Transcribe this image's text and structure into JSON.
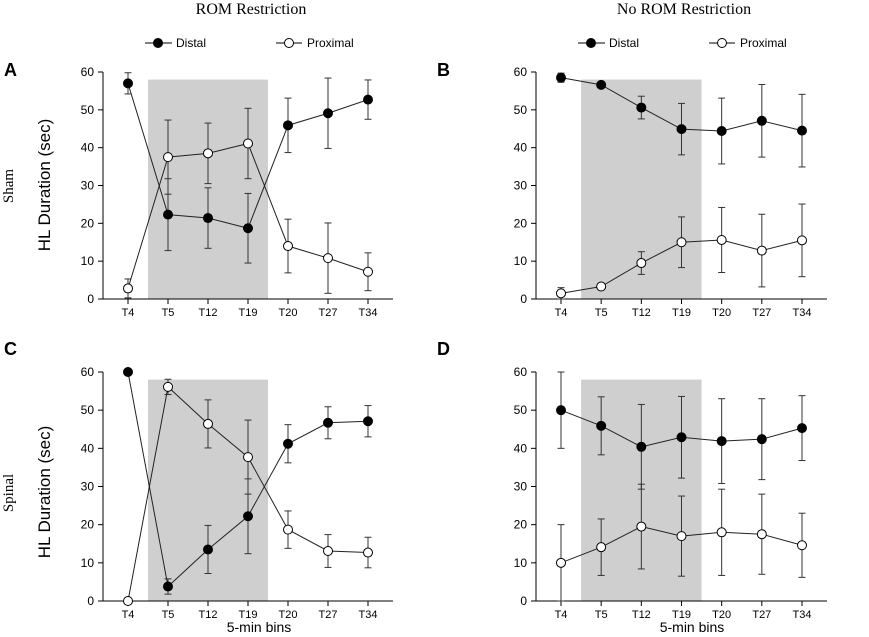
{
  "figure": {
    "col_titles": [
      "ROM Restriction",
      "No ROM Restriction"
    ],
    "row_labels": [
      "Sham",
      "Spinal"
    ],
    "ylabel": "HL Duration (sec)",
    "xlabel": "5-min bins",
    "legend": {
      "distal": "Distal",
      "proximal": "Proximal"
    }
  },
  "chart_data": [
    {
      "panel": "A",
      "type": "line",
      "categories": [
        "T4",
        "T5",
        "T12",
        "T19",
        "T20",
        "T27",
        "T34"
      ],
      "ylim": [
        0,
        60
      ],
      "yticks": [
        0,
        10,
        20,
        30,
        40,
        50,
        60
      ],
      "shaded_range": [
        "T5",
        "T19"
      ],
      "series": [
        {
          "name": "Distal",
          "marker": "filled",
          "values": [
            57,
            22.3,
            21.4,
            18.7,
            45.9,
            49.1,
            52.7
          ],
          "errors": [
            2.8,
            9.5,
            8,
            9.2,
            7.2,
            9.3,
            5.2
          ]
        },
        {
          "name": "Proximal",
          "marker": "open",
          "values": [
            2.8,
            37.5,
            38.5,
            41.1,
            14,
            10.8,
            7.2
          ],
          "errors": [
            2.5,
            9.8,
            8,
            9.3,
            7.1,
            9.3,
            5
          ]
        }
      ]
    },
    {
      "panel": "B",
      "type": "line",
      "categories": [
        "T4",
        "T5",
        "T12",
        "T19",
        "T20",
        "T27",
        "T34"
      ],
      "ylim": [
        0,
        60
      ],
      "yticks": [
        0,
        10,
        20,
        30,
        40,
        50,
        60
      ],
      "shaded_range": [
        "T5",
        "T19"
      ],
      "series": [
        {
          "name": "Distal",
          "marker": "filled",
          "values": [
            58.5,
            56.6,
            50.6,
            44.9,
            44.4,
            47.1,
            44.5
          ],
          "errors": [
            1.2,
            0.5,
            3,
            6.8,
            8.7,
            9.6,
            9.6
          ]
        },
        {
          "name": "Proximal",
          "marker": "open",
          "values": [
            1.5,
            3.3,
            9.5,
            15,
            15.6,
            12.8,
            15.5
          ],
          "errors": [
            1.5,
            0.5,
            3,
            6.7,
            8.6,
            9.6,
            9.6
          ]
        }
      ]
    },
    {
      "panel": "C",
      "type": "line",
      "categories": [
        "T4",
        "T5",
        "T12",
        "T19",
        "T20",
        "T27",
        "T34"
      ],
      "ylim": [
        0,
        60
      ],
      "yticks": [
        0,
        10,
        20,
        30,
        40,
        50,
        60
      ],
      "shaded_range": [
        "T5",
        "T19"
      ],
      "series": [
        {
          "name": "Distal",
          "marker": "filled",
          "values": [
            60,
            3.8,
            13.5,
            22.2,
            41.2,
            46.7,
            47.1
          ],
          "errors": [
            0,
            2,
            6.3,
            9.8,
            5,
            4.2,
            4.1
          ]
        },
        {
          "name": "Proximal",
          "marker": "open",
          "values": [
            0,
            56.1,
            46.4,
            37.7,
            18.7,
            13.1,
            12.7
          ],
          "errors": [
            0,
            2,
            6.3,
            9.7,
            4.9,
            4.3,
            4
          ]
        }
      ]
    },
    {
      "panel": "D",
      "type": "line",
      "categories": [
        "T4",
        "T5",
        "T12",
        "T19",
        "T20",
        "T27",
        "T34"
      ],
      "ylim": [
        0,
        60
      ],
      "yticks": [
        0,
        10,
        20,
        30,
        40,
        50,
        60
      ],
      "shaded_range": [
        "T5",
        "T19"
      ],
      "series": [
        {
          "name": "Distal",
          "marker": "filled",
          "values": [
            50,
            45.9,
            40.4,
            42.9,
            41.9,
            42.4,
            45.3
          ],
          "errors": [
            10,
            7.6,
            11.1,
            10.7,
            11.1,
            10.6,
            8.5
          ]
        },
        {
          "name": "Proximal",
          "marker": "open",
          "values": [
            10,
            14.1,
            19.5,
            17,
            18,
            17.5,
            14.6
          ],
          "errors": [
            10,
            7.4,
            11.1,
            10.5,
            11.3,
            10.5,
            8.4
          ]
        }
      ]
    }
  ]
}
